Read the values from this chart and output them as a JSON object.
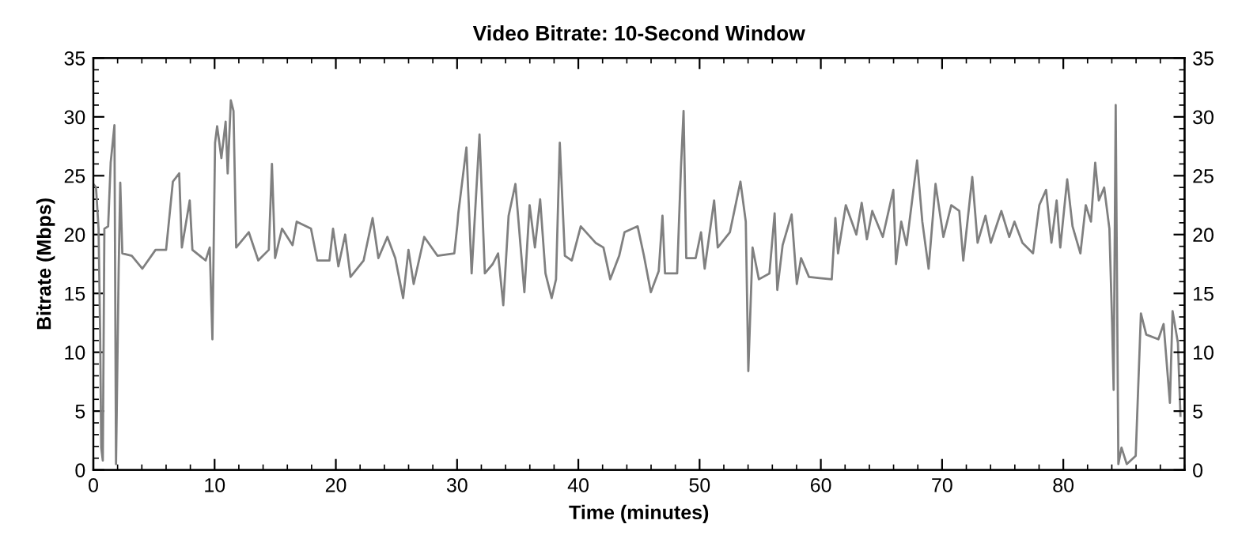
{
  "chart_data": {
    "type": "line",
    "title": "Video Bitrate: 10-Second Window",
    "xlabel": "Time (minutes)",
    "ylabel": "Bitrate (Mbps)",
    "xlim": [
      0,
      89.9
    ],
    "xticks": [
      0,
      10,
      20,
      30,
      40,
      50,
      60,
      70,
      80
    ],
    "ylim": [
      0,
      35
    ],
    "yticks": [
      0,
      5,
      10,
      15,
      20,
      25,
      30,
      35
    ],
    "y2lim": [
      0,
      35
    ],
    "y2ticks": [
      0,
      5,
      10,
      15,
      20,
      25,
      30,
      35
    ],
    "grid": false,
    "legend": false,
    "marker": "none",
    "line_style": "solid",
    "series": [
      {
        "color": "#808080",
        "x": [
          0,
          0.22,
          0.43,
          0.56,
          0.65,
          0.78,
          0.91,
          1.22,
          1.43,
          1.74,
          1.87,
          2.09,
          2.22,
          2.39,
          3.17,
          4.04,
          5.13,
          6.0,
          6.56,
          7.08,
          7.3,
          7.95,
          8.17,
          9.26,
          9.6,
          9.82,
          10.04,
          10.21,
          10.56,
          10.91,
          11.08,
          11.34,
          11.56,
          11.78,
          12.82,
          13.6,
          14.47,
          14.73,
          14.99,
          15.56,
          16.43,
          16.77,
          17.95,
          18.47,
          19.47,
          19.77,
          20.21,
          20.77,
          21.21,
          22.29,
          23.03,
          23.51,
          24.25,
          24.9,
          25.55,
          25.99,
          26.42,
          27.29,
          28.38,
          29.77,
          30.03,
          30.1,
          30.77,
          31.2,
          31.85,
          32.29,
          32.94,
          33.38,
          33.81,
          34.25,
          34.81,
          35.55,
          35.98,
          36.42,
          36.85,
          37.29,
          37.8,
          38.16,
          38.47,
          38.89,
          39.46,
          40.2,
          41.42,
          42.07,
          42.63,
          43.37,
          43.81,
          44.89,
          45.41,
          45.98,
          46.63,
          46.94,
          47.15,
          48.15,
          48.46,
          48.68,
          48.9,
          49.68,
          50.12,
          50.42,
          51.2,
          51.5,
          52.5,
          53.37,
          53.81,
          54.02,
          54.37,
          54.89,
          55.76,
          56.19,
          56.41,
          56.85,
          57.59,
          58.02,
          58.37,
          59.02,
          59.9,
          60.9,
          61.2,
          61.42,
          62.06,
          62.93,
          63.37,
          63.8,
          64.24,
          65.11,
          65.98,
          66.2,
          66.63,
          67.07,
          67.94,
          68.37,
          68.89,
          69.46,
          70.11,
          70.76,
          71.42,
          71.75,
          72.49,
          72.93,
          73.58,
          74.02,
          74.89,
          75.54,
          75.97,
          76.63,
          77.5,
          78.02,
          78.58,
          79.02,
          79.45,
          79.75,
          80.32,
          80.76,
          81.41,
          81.85,
          82.28,
          82.63,
          82.93,
          83.37,
          83.8,
          84.02,
          84.15,
          84.32,
          84.54,
          84.8,
          85.23,
          85.97,
          86.4,
          86.84,
          87.84,
          88.27,
          88.79,
          89.01,
          89.45,
          89.66
        ],
        "values": [
          24.3,
          24.0,
          20.5,
          11.7,
          1.9,
          0.8,
          20.5,
          20.7,
          26.1,
          29.3,
          0.5,
          17.1,
          24.4,
          18.4,
          18.2,
          17.1,
          18.7,
          18.7,
          24.5,
          25.2,
          18.9,
          22.9,
          18.7,
          17.8,
          18.9,
          11.1,
          27.8,
          29.2,
          26.5,
          29.6,
          25.2,
          31.4,
          30.5,
          18.9,
          20.2,
          17.8,
          18.7,
          26.0,
          18.0,
          20.5,
          19.1,
          21.1,
          20.5,
          17.8,
          17.8,
          20.5,
          17.3,
          20.0,
          16.4,
          17.8,
          21.4,
          18.0,
          19.8,
          18.0,
          14.6,
          18.7,
          15.8,
          19.8,
          18.2,
          18.4,
          20.9,
          21.8,
          27.4,
          16.7,
          28.5,
          16.7,
          17.5,
          18.4,
          14.0,
          21.6,
          24.3,
          15.1,
          22.5,
          18.9,
          23.0,
          16.7,
          14.6,
          16.2,
          27.8,
          18.2,
          17.8,
          20.7,
          19.3,
          18.9,
          16.2,
          18.2,
          20.2,
          20.7,
          18.2,
          15.1,
          16.9,
          21.6,
          16.7,
          16.7,
          25.6,
          30.5,
          18.0,
          18.0,
          20.2,
          17.1,
          22.9,
          18.9,
          20.2,
          24.5,
          21.1,
          8.4,
          18.9,
          16.2,
          16.7,
          21.8,
          15.3,
          19.1,
          21.7,
          15.8,
          18.0,
          16.4,
          16.3,
          16.2,
          21.4,
          18.4,
          22.5,
          20.0,
          22.7,
          19.6,
          22.0,
          19.8,
          23.8,
          17.5,
          21.1,
          19.1,
          26.3,
          21.1,
          17.1,
          24.3,
          19.8,
          22.5,
          22.0,
          17.8,
          24.9,
          19.3,
          21.6,
          19.3,
          22.0,
          19.8,
          21.1,
          19.3,
          18.4,
          22.5,
          23.8,
          19.3,
          22.9,
          18.9,
          24.7,
          20.7,
          18.4,
          22.5,
          21.1,
          26.1,
          22.9,
          24.0,
          20.5,
          12.6,
          6.8,
          31.0,
          0.5,
          1.9,
          0.5,
          1.2,
          13.3,
          11.5,
          11.1,
          12.4,
          5.7,
          13.5,
          10.8,
          4.6
        ]
      }
    ]
  }
}
